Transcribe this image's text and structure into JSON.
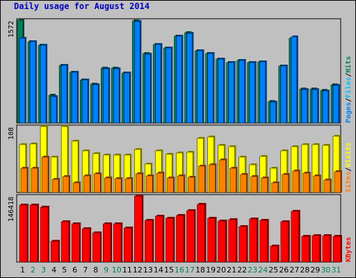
{
  "title": "Daily usage for August 2014",
  "colors": {
    "background": "#c0c0c0",
    "panel": "#c0c0c0",
    "title": "#0000c0",
    "hits": "#00805c",
    "files": "#00c0ff",
    "pages": "#0080ff",
    "visits": "#ffff00",
    "sites": "#ff8000",
    "kbytes": "#ff0000",
    "weekend_label": "#00805c",
    "weekday_label": "#000000"
  },
  "chart_data": [
    {
      "type": "bar",
      "panel": "hits-files-pages",
      "ymax_label": "1572",
      "ylim": [
        0,
        1572
      ],
      "categories": [
        "1",
        "2",
        "3",
        "4",
        "5",
        "6",
        "7",
        "8",
        "9",
        "10",
        "11",
        "12",
        "13",
        "14",
        "15",
        "16",
        "17",
        "18",
        "19",
        "20",
        "21",
        "22",
        "23",
        "24",
        "25",
        "26",
        "27",
        "28",
        "29",
        "30",
        "31"
      ],
      "weekend": [
        false,
        true,
        true,
        false,
        false,
        false,
        false,
        false,
        true,
        true,
        false,
        false,
        false,
        false,
        false,
        true,
        true,
        false,
        false,
        false,
        false,
        false,
        true,
        true,
        false,
        false,
        false,
        false,
        false,
        true,
        true
      ],
      "series": [
        {
          "name": "Hits",
          "color": "#00805c",
          "values": [
            1572,
            1240,
            1190,
            420,
            880,
            780,
            660,
            600,
            840,
            840,
            760,
            1560,
            1060,
            1200,
            1150,
            1330,
            1380,
            1100,
            1060,
            980,
            920,
            960,
            920,
            940,
            330,
            870,
            1300,
            520,
            520,
            500,
            580
          ]
        },
        {
          "name": "Files",
          "color": "#00c0ff",
          "values": [
            1300,
            1240,
            1190,
            400,
            880,
            780,
            660,
            580,
            830,
            830,
            760,
            1550,
            1050,
            1200,
            1150,
            1330,
            1370,
            1100,
            1060,
            980,
            920,
            960,
            920,
            940,
            320,
            870,
            1320,
            510,
            510,
            490,
            570
          ]
        },
        {
          "name": "Pages",
          "color": "#0080ff",
          "values": [
            1300,
            1240,
            1190,
            400,
            880,
            780,
            660,
            580,
            830,
            830,
            760,
            1550,
            1050,
            1200,
            1150,
            1330,
            1370,
            1100,
            1060,
            980,
            920,
            960,
            920,
            940,
            320,
            870,
            1320,
            510,
            510,
            490,
            570
          ]
        }
      ],
      "axis_labels": [
        {
          "text": "Pages",
          "color": "#0080ff"
        },
        {
          "text": "/",
          "color": "#000000"
        },
        {
          "text": "Files",
          "color": "#00c0ff"
        },
        {
          "text": "/",
          "color": "#000000"
        },
        {
          "text": "Hits",
          "color": "#00805c"
        }
      ]
    },
    {
      "type": "bar",
      "panel": "visits-sites",
      "ymax_label": "108",
      "ylim": [
        0,
        108
      ],
      "categories": [
        "1",
        "2",
        "3",
        "4",
        "5",
        "6",
        "7",
        "8",
        "9",
        "10",
        "11",
        "12",
        "13",
        "14",
        "15",
        "16",
        "17",
        "18",
        "19",
        "20",
        "21",
        "22",
        "23",
        "24",
        "25",
        "26",
        "27",
        "28",
        "29",
        "30",
        "31"
      ],
      "series": [
        {
          "name": "Visits",
          "color": "#ffff00",
          "values": [
            79,
            80,
            108,
            58,
            108,
            84,
            68,
            64,
            61,
            61,
            61,
            71,
            47,
            68,
            62,
            65,
            66,
            89,
            91,
            77,
            75,
            58,
            46,
            59,
            40,
            68,
            75,
            78,
            79,
            77,
            92
          ]
        },
        {
          "name": "Sites",
          "color": "#ff8000",
          "values": [
            40,
            40,
            58,
            22,
            26,
            16,
            27,
            31,
            24,
            23,
            23,
            31,
            27,
            32,
            24,
            27,
            25,
            43,
            45,
            53,
            40,
            30,
            26,
            24,
            16,
            30,
            35,
            32,
            27,
            21,
            34
          ]
        }
      ],
      "axis_labels": [
        {
          "text": "Sites",
          "color": "#ff8000"
        },
        {
          "text": "/",
          "color": "#000000"
        },
        {
          "text": "Visits",
          "color": "#ffff00"
        }
      ]
    },
    {
      "type": "bar",
      "panel": "kbytes",
      "ymax_label": "146418",
      "ylim": [
        0,
        146418
      ],
      "categories": [
        "1",
        "2",
        "3",
        "4",
        "5",
        "6",
        "7",
        "8",
        "9",
        "10",
        "11",
        "12",
        "13",
        "14",
        "15",
        "16",
        "17",
        "18",
        "19",
        "20",
        "21",
        "22",
        "23",
        "24",
        "25",
        "26",
        "27",
        "28",
        "29",
        "30",
        "31"
      ],
      "series": [
        {
          "name": "KBytes",
          "color": "#ff0000",
          "values": [
            126000,
            127000,
            121000,
            46000,
            90000,
            84000,
            74000,
            65000,
            84000,
            84000,
            76000,
            146418,
            92000,
            101000,
            97000,
            103000,
            114000,
            128000,
            97000,
            91000,
            94000,
            79000,
            95000,
            93000,
            36000,
            89000,
            113000,
            57000,
            58000,
            58000,
            57000
          ]
        }
      ],
      "axis_labels": [
        {
          "text": "KBytes",
          "color": "#ff0000"
        }
      ]
    }
  ]
}
